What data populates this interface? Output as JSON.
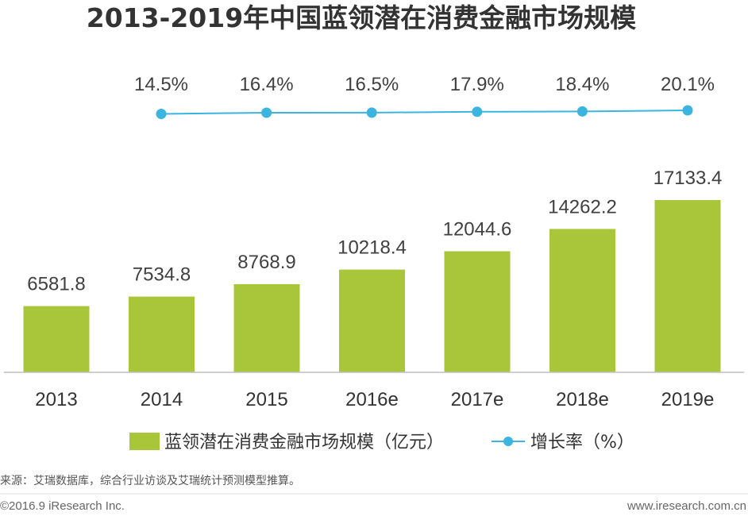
{
  "chart_data": {
    "type": "bar",
    "title": "2013-2019年中国蓝领潜在消费金融市场规模",
    "categories": [
      "2013",
      "2014",
      "2015",
      "2016e",
      "2017e",
      "2018e",
      "2019e"
    ],
    "series": [
      {
        "name": "蓝领潜在消费金融市场规模（亿元）",
        "type": "bar",
        "values": [
          6581.8,
          7534.8,
          8768.9,
          10218.4,
          12044.6,
          14262.2,
          17133.4
        ],
        "labels": [
          "6581.8",
          "7534.8",
          "8768.9",
          "10218.4",
          "12044.6",
          "14262.2",
          "17133.4"
        ],
        "color": "#a9c63a"
      },
      {
        "name": "增长率（%）",
        "type": "line",
        "values": [
          14.5,
          16.4,
          16.5,
          17.9,
          18.4,
          20.1
        ],
        "x": [
          "2014",
          "2015",
          "2016e",
          "2017e",
          "2018e",
          "2019e"
        ],
        "labels": [
          "14.5%",
          "16.4%",
          "16.5%",
          "17.9%",
          "18.4%",
          "20.1%"
        ],
        "color": "#3bb5e0"
      }
    ],
    "ylim": [
      0,
      17133.4
    ],
    "legend_position": "bottom",
    "grid": false
  },
  "source": "来源：艾瑞数据库，综合行业访谈及艾瑞统计预测模型推算。",
  "footer": {
    "copyright": "©2016.9 iResearch Inc.",
    "website": "www.iresearch.com.cn"
  }
}
